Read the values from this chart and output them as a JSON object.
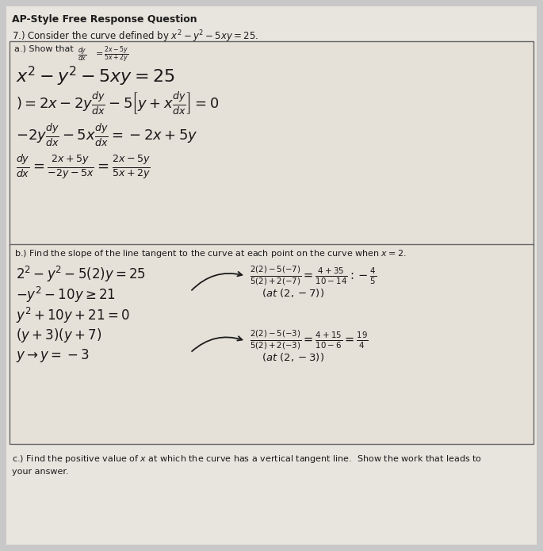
{
  "bg_color": "#c8c8c8",
  "paper_color": "#e8e4de",
  "title": "AP-Style Free Response Question",
  "problem": "7.) Consider the curve defined by $x^2-y^2-5xy=25$.",
  "part_a_header": "a.) Show that  $\\dfrac{dy}{dx}=\\dfrac{2x-5y}{5x+2y}$",
  "part_b_header": "b.) Find the slope of the line tangent to the curve at each point on the curve when $x=2$.",
  "part_c_header": "c.) Find the positive value of $x$ at which the curve has a vertical tangent line.  Show the work that leads to",
  "part_c_cont": "your answer.",
  "ink": "#1c1c1c",
  "box_edge": "#666666",
  "box_face": "#e5e0d8"
}
